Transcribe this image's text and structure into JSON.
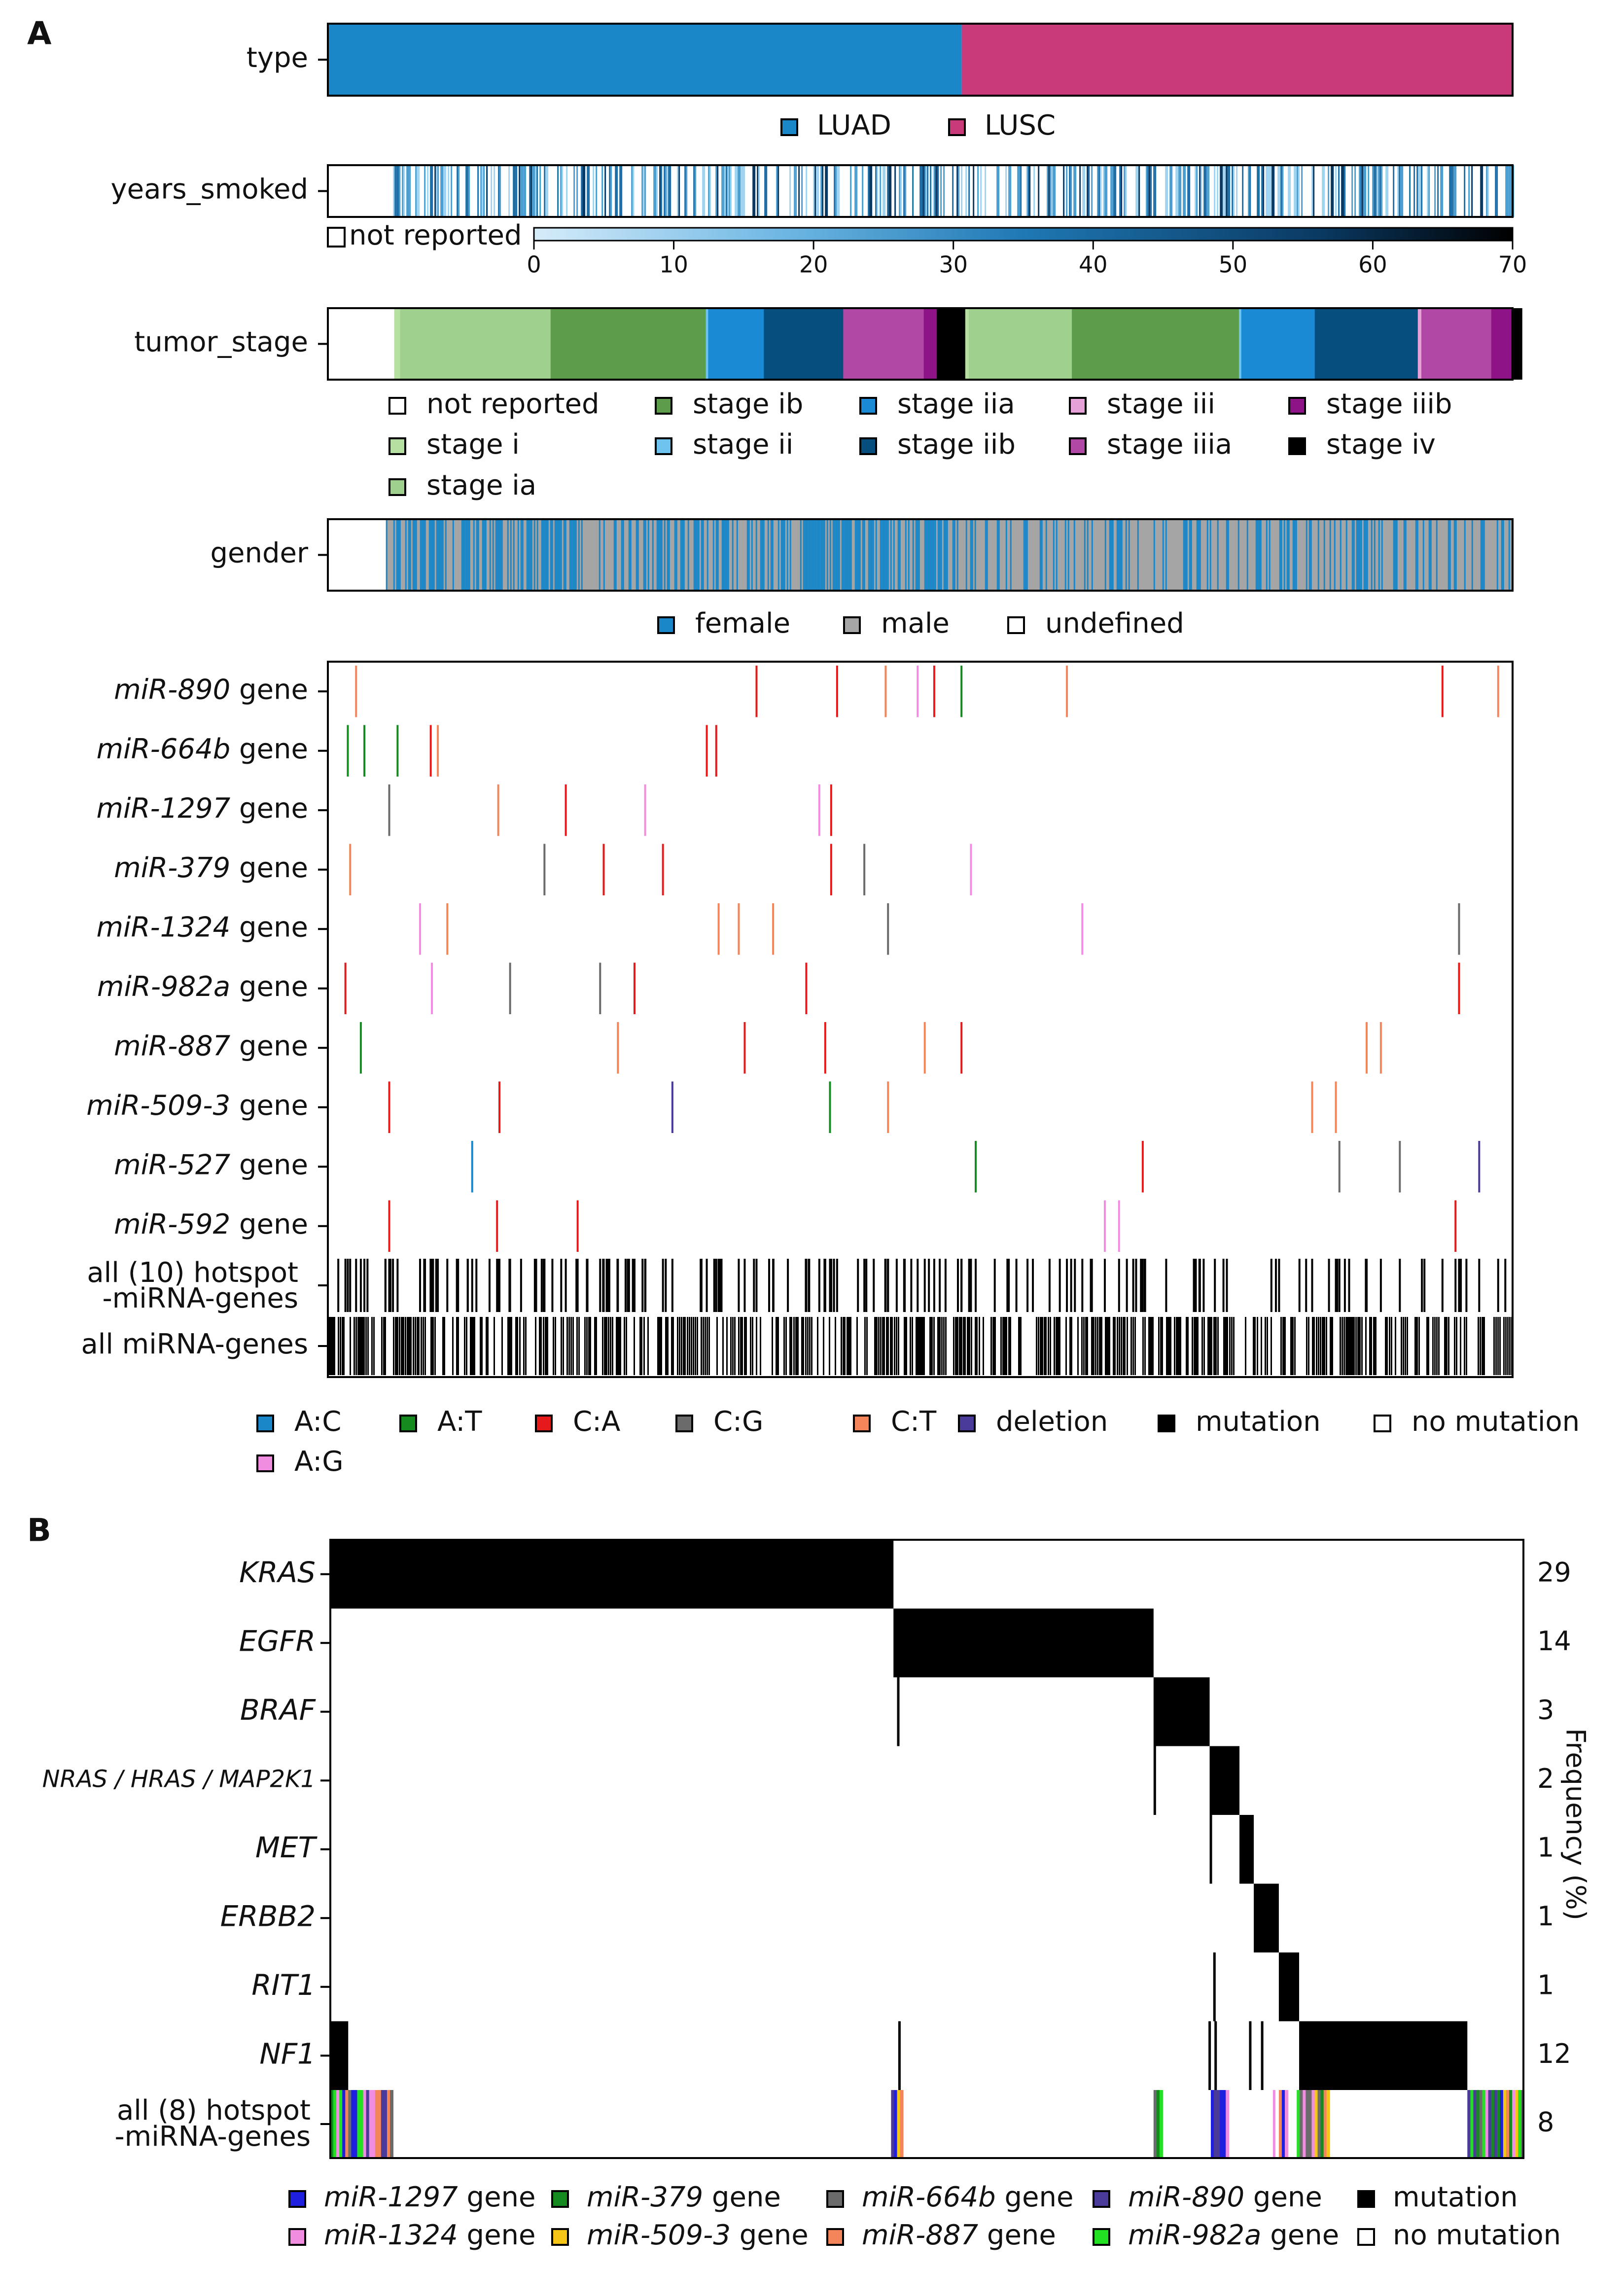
{
  "panels": {
    "a_label": "A",
    "b_label": "B"
  },
  "chart_data": [
    {
      "type": "heatmap",
      "panel": "A",
      "title": "",
      "tracks": {
        "type": {
          "label": "type",
          "segments": [
            {
              "name": "LUAD",
              "fraction": 0.535
            },
            {
              "name": "LUSC",
              "fraction": 0.465
            }
          ],
          "legend": [
            {
              "label": "LUAD",
              "color": "#1a87c9"
            },
            {
              "label": "LUSC",
              "color": "#c93a7b"
            }
          ]
        },
        "years_smoked": {
          "label": "years_smoked",
          "not_reported_label": "not reported",
          "not_reported_fraction": 0.055,
          "colorbar_ticks": [
            "0",
            "10",
            "20",
            "30",
            "40",
            "50",
            "60",
            "70"
          ],
          "colorbar_range": [
            0,
            70
          ]
        },
        "tumor_stage": {
          "label": "tumor_stage",
          "segments": [
            {
              "name": "not reported",
              "fraction": 0.056
            },
            {
              "name": "stage i",
              "fraction": 0.005
            },
            {
              "name": "stage ia",
              "fraction": 0.127
            },
            {
              "name": "stage ib",
              "fraction": 0.131
            },
            {
              "name": "stage ii",
              "fraction": 0.002
            },
            {
              "name": "stage iia",
              "fraction": 0.047
            },
            {
              "name": "stage iib",
              "fraction": 0.067
            },
            {
              "name": "stage iiia",
              "fraction": 0.068
            },
            {
              "name": "stage iiib",
              "fraction": 0.011
            },
            {
              "name": "stage iv",
              "fraction": 0.024
            },
            {
              "name": "stage i",
              "fraction": 0.003
            },
            {
              "name": "stage ia",
              "fraction": 0.087
            },
            {
              "name": "stage ib",
              "fraction": 0.141
            },
            {
              "name": "stage ii",
              "fraction": 0.002
            },
            {
              "name": "stage iia",
              "fraction": 0.062
            },
            {
              "name": "stage iib",
              "fraction": 0.087
            },
            {
              "name": "stage iii",
              "fraction": 0.003
            },
            {
              "name": "stage iiia",
              "fraction": 0.059
            },
            {
              "name": "stage iiib",
              "fraction": 0.017
            },
            {
              "name": "stage iv",
              "fraction": 0.009
            }
          ],
          "legend": [
            {
              "label": "not reported",
              "color": "#ffffff"
            },
            {
              "label": "stage ib",
              "color": "#5c9c4b"
            },
            {
              "label": "stage iia",
              "color": "#1a8ad4"
            },
            {
              "label": "stage iii",
              "color": "#e6a1d9"
            },
            {
              "label": "stage iiib",
              "color": "#8e1387"
            },
            {
              "label": "stage i",
              "color": "#b5e0a1"
            },
            {
              "label": "stage ii",
              "color": "#6fc4ef"
            },
            {
              "label": "stage iib",
              "color": "#064e7d"
            },
            {
              "label": "stage iiia",
              "color": "#b148a5"
            },
            {
              "label": "stage iv",
              "color": "#000000"
            },
            {
              "label": "stage ia",
              "color": "#9fd08d"
            }
          ]
        },
        "gender": {
          "label": "gender",
          "undefined_fraction": 0.049,
          "female_fraction_luad": 0.57,
          "female_fraction_lusc": 0.26,
          "legend": [
            {
              "label": "female",
              "color": "#1a87c9"
            },
            {
              "label": "male",
              "color": "#a5a5a5"
            },
            {
              "label": "undefined",
              "color": "#ffffff"
            }
          ]
        }
      },
      "mirna_rows": [
        {
          "italic": "miR-890",
          "suffix": " gene"
        },
        {
          "italic": "miR-664b",
          "suffix": " gene"
        },
        {
          "italic": "miR-1297",
          "suffix": " gene"
        },
        {
          "italic": "miR-379",
          "suffix": " gene"
        },
        {
          "italic": "miR-1324",
          "suffix": " gene"
        },
        {
          "italic": "miR-982a",
          "suffix": " gene"
        },
        {
          "italic": "miR-887",
          "suffix": " gene"
        },
        {
          "italic": "miR-509-3",
          "suffix": " gene"
        },
        {
          "italic": "miR-527",
          "suffix": " gene"
        },
        {
          "italic": "miR-592",
          "suffix": " gene"
        }
      ],
      "mutation_events": [
        [
          [
            0.023,
            "C:T"
          ],
          [
            0.361,
            "C:A"
          ],
          [
            0.429,
            "C:A"
          ],
          [
            0.47,
            "C:T"
          ],
          [
            0.497,
            "A:G"
          ],
          [
            0.511,
            "C:A"
          ],
          [
            0.534,
            "A:T"
          ],
          [
            0.623,
            "C:T"
          ],
          [
            0.94,
            "C:A"
          ],
          [
            0.987,
            "C:T"
          ]
        ],
        [
          [
            0.016,
            "A:T"
          ],
          [
            0.03,
            "A:T"
          ],
          [
            0.058,
            "A:T"
          ],
          [
            0.086,
            "C:A"
          ],
          [
            0.092,
            "C:T"
          ],
          [
            0.319,
            "C:A"
          ],
          [
            0.327,
            "C:A"
          ]
        ],
        [
          [
            0.051,
            "C:G"
          ],
          [
            0.143,
            "C:T"
          ],
          [
            0.2,
            "C:A"
          ],
          [
            0.267,
            "A:G"
          ],
          [
            0.414,
            "A:G"
          ],
          [
            0.424,
            "C:A"
          ]
        ],
        [
          [
            0.018,
            "C:T"
          ],
          [
            0.182,
            "C:G"
          ],
          [
            0.232,
            "C:A"
          ],
          [
            0.282,
            "C:A"
          ],
          [
            0.424,
            "C:A"
          ],
          [
            0.452,
            "C:G"
          ],
          [
            0.542,
            "A:G"
          ]
        ],
        [
          [
            0.077,
            "A:G"
          ],
          [
            0.1,
            "C:T"
          ],
          [
            0.329,
            "C:T"
          ],
          [
            0.346,
            "C:T"
          ],
          [
            0.375,
            "C:T"
          ],
          [
            0.472,
            "C:G"
          ],
          [
            0.636,
            "A:G"
          ],
          [
            0.954,
            "C:G"
          ]
        ],
        [
          [
            0.014,
            "C:A"
          ],
          [
            0.087,
            "A:G"
          ],
          [
            0.153,
            "C:G"
          ],
          [
            0.229,
            "C:G"
          ],
          [
            0.258,
            "C:A"
          ],
          [
            0.403,
            "C:A"
          ],
          [
            0.954,
            "C:A"
          ]
        ],
        [
          [
            0.027,
            "A:T"
          ],
          [
            0.244,
            "C:T"
          ],
          [
            0.351,
            "C:A"
          ],
          [
            0.419,
            "C:A"
          ],
          [
            0.503,
            "C:T"
          ],
          [
            0.534,
            "C:A"
          ],
          [
            0.876,
            "C:T"
          ],
          [
            0.888,
            "C:T"
          ]
        ],
        [
          [
            0.051,
            "C:A"
          ],
          [
            0.144,
            "C:A"
          ],
          [
            0.29,
            "deletion"
          ],
          [
            0.423,
            "A:T"
          ],
          [
            0.472,
            "C:T"
          ],
          [
            0.83,
            "C:T"
          ],
          [
            0.85,
            "C:T"
          ]
        ],
        [
          [
            0.121,
            "A:C"
          ],
          [
            0.546,
            "A:T"
          ],
          [
            0.687,
            "C:A"
          ],
          [
            0.853,
            "C:G"
          ],
          [
            0.904,
            "C:G"
          ],
          [
            0.971,
            "deletion"
          ]
        ],
        [
          [
            0.051,
            "C:A"
          ],
          [
            0.142,
            "C:A"
          ],
          [
            0.21,
            "C:A"
          ],
          [
            0.655,
            "A:G"
          ],
          [
            0.667,
            "A:G"
          ],
          [
            0.951,
            "C:A"
          ]
        ]
      ],
      "summary_rows": {
        "hotspot_line1": "all (10) hotspot",
        "hotspot_line2": "-miRNA-genes",
        "all": "all miRNA-genes"
      },
      "legend": [
        {
          "label": "A:C",
          "color": "#1a87c9"
        },
        {
          "label": "A:T",
          "color": "#148a1f"
        },
        {
          "label": "C:A",
          "color": "#e51b1b"
        },
        {
          "label": "C:G",
          "color": "#6b6b6b"
        },
        {
          "label": "C:T",
          "color": "#f4845a"
        },
        {
          "label": "deletion",
          "color": "#4a3b9a"
        },
        {
          "label": "mutation",
          "color": "#000000"
        },
        {
          "label": "no mutation",
          "color": "#ffffff"
        },
        {
          "label": "A:G",
          "color": "#f08de0"
        }
      ]
    },
    {
      "type": "heatmap",
      "panel": "B",
      "title": "",
      "ylabel_right": "Frequency (%)",
      "genes": [
        {
          "label": "KRAS",
          "frequency": "29",
          "blocks": [
            [
              0.0,
              0.472
            ]
          ]
        },
        {
          "label": "EGFR",
          "frequency": "14",
          "blocks": [
            [
              0.472,
              0.69
            ]
          ]
        },
        {
          "label": "BRAF",
          "frequency": "3",
          "blocks": [
            [
              0.69,
              0.737
            ]
          ],
          "ticks": [
            0.475
          ]
        },
        {
          "label": "NRAS / HRAS / MAP2K1",
          "frequency": "2",
          "blocks": [
            [
              0.737,
              0.762
            ]
          ],
          "ticks": [
            0.69
          ]
        },
        {
          "label": "MET",
          "frequency": "1",
          "blocks": [
            [
              0.762,
              0.774
            ]
          ],
          "ticks": [
            0.737
          ]
        },
        {
          "label": "ERBB2",
          "frequency": "1",
          "blocks": [
            [
              0.774,
              0.795
            ]
          ]
        },
        {
          "label": "RIT1",
          "frequency": "1",
          "blocks": [
            [
              0.795,
              0.812
            ]
          ],
          "ticks": [
            0.74
          ]
        },
        {
          "label": "NF1",
          "frequency": "12",
          "blocks": [
            [
              0.0,
              0.015
            ],
            [
              0.812,
              0.953
            ]
          ],
          "ticks": [
            0.476,
            0.736,
            0.741,
            0.77,
            0.78
          ]
        }
      ],
      "hotspot_row": {
        "line1": "all (8) hotspot",
        "line2": "-miRNA-genes",
        "frequency": "8"
      },
      "legend": [
        {
          "label": "miR-1297 gene",
          "color": "#1f1fe0"
        },
        {
          "label": "miR-379 gene",
          "color": "#148a1f"
        },
        {
          "label": "miR-664b gene",
          "color": "#6b6b6b"
        },
        {
          "label": "miR-890 gene",
          "color": "#4a3b9a"
        },
        {
          "label": "mutation",
          "color": "#000000"
        },
        {
          "label": "miR-1324 gene",
          "color": "#f08de0"
        },
        {
          "label": "miR-509-3 gene",
          "color": "#f5c518"
        },
        {
          "label": "miR-887 gene",
          "color": "#f4845a"
        },
        {
          "label": "miR-982a gene",
          "color": "#22e022"
        },
        {
          "label": "no mutation",
          "color": "#ffffff"
        }
      ]
    }
  ]
}
